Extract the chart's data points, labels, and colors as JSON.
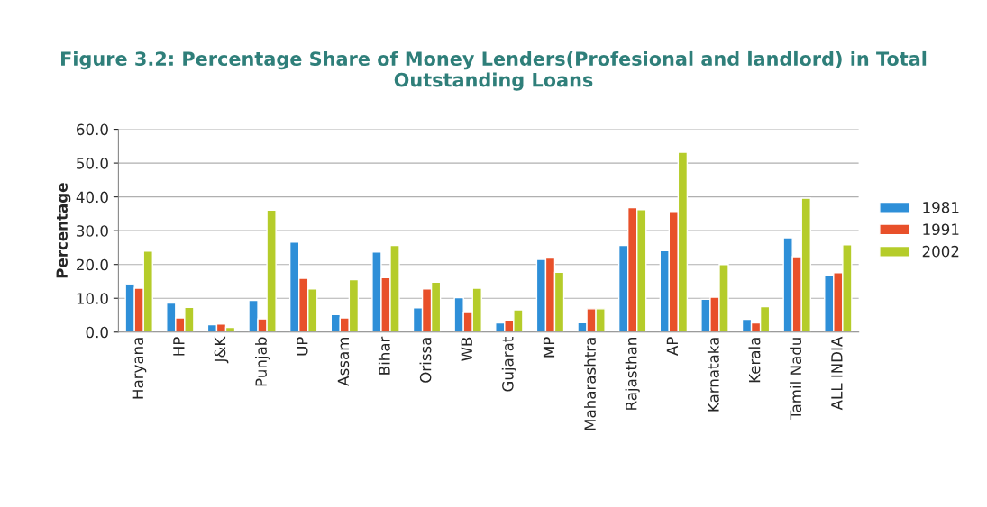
{
  "chart_data": {
    "type": "bar",
    "title": "Figure 3.2: Percentage Share of Money Lenders(Profesional and landlord) in Total Outstanding Loans",
    "ylabel": "Percentage",
    "categories": [
      "Haryana",
      "HP",
      "J&K",
      "Punjab",
      "UP",
      "Assam",
      "Bihar",
      "Orissa",
      "WB",
      "Gujarat",
      "MP",
      "Maharashtra",
      "Rajasthan",
      "AP",
      "Karnataka",
      "Kerala",
      "Tamil Nadu",
      "ALL INDIA"
    ],
    "series": [
      {
        "name": "1981",
        "color": "#2e8fd8",
        "values": [
          14.1,
          8.6,
          2.2,
          9.4,
          26.6,
          5.2,
          23.7,
          7.2,
          10.2,
          2.7,
          21.5,
          2.8,
          25.6,
          24.1,
          9.7,
          3.8,
          27.9,
          16.9
        ]
      },
      {
        "name": "1991",
        "color": "#e8502a",
        "values": [
          13.0,
          4.2,
          2.4,
          3.9,
          15.9,
          4.2,
          16.1,
          12.8,
          5.8,
          3.4,
          21.9,
          6.9,
          36.8,
          35.7,
          10.3,
          2.7,
          22.3,
          17.6
        ]
      },
      {
        "name": "2002",
        "color": "#b5cc2a",
        "values": [
          24.0,
          7.3,
          1.4,
          36.1,
          12.8,
          15.5,
          25.6,
          14.8,
          13.0,
          6.6,
          17.7,
          6.9,
          36.2,
          53.2,
          20.0,
          7.5,
          39.6,
          25.8
        ]
      }
    ],
    "ylim": [
      0,
      60
    ],
    "yticks": [
      {
        "value": 0,
        "label": "0.0"
      },
      {
        "value": 10,
        "label": "10.0"
      },
      {
        "value": 20,
        "label": "20.0"
      },
      {
        "value": 30,
        "label": "30.0"
      },
      {
        "value": 40,
        "label": "40.0"
      },
      {
        "value": 50,
        "label": "50.0"
      },
      {
        "value": 60,
        "label": "60.0"
      }
    ],
    "grid": "y",
    "legend": "right"
  }
}
